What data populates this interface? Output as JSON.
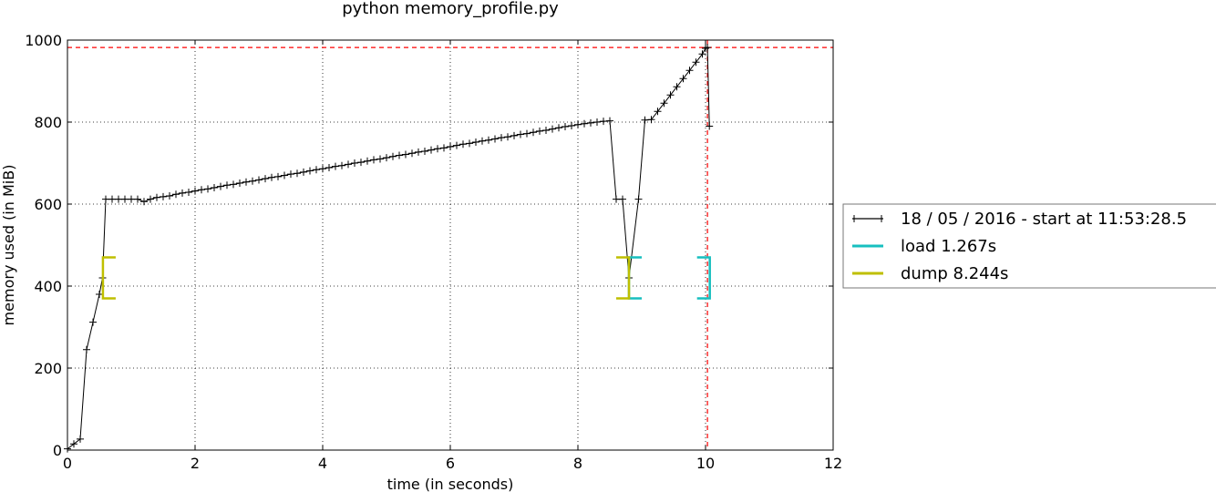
{
  "chart_data": {
    "type": "line",
    "title": "python memory_profile.py",
    "xlabel": "time (in seconds)",
    "ylabel": "memory used (in MiB)",
    "xlim": [
      0,
      12
    ],
    "ylim": [
      0,
      1000
    ],
    "xticks": [
      "0",
      "2",
      "4",
      "6",
      "8",
      "10",
      "12"
    ],
    "yticks": [
      "0",
      "200",
      "400",
      "600",
      "800",
      "1000"
    ],
    "grid": true,
    "legend_position": "right",
    "series": [
      {
        "name": "18 / 05 / 2016 - start at 11:53:28.5",
        "color": "#000000",
        "marker": "+",
        "points": [
          [
            0.0,
            3
          ],
          [
            0.1,
            15
          ],
          [
            0.2,
            27
          ],
          [
            0.3,
            245
          ],
          [
            0.4,
            312
          ],
          [
            0.5,
            380
          ],
          [
            0.55,
            420
          ],
          [
            0.6,
            612
          ],
          [
            0.7,
            612
          ],
          [
            0.8,
            612
          ],
          [
            0.9,
            612
          ],
          [
            1.0,
            612
          ],
          [
            1.1,
            612
          ],
          [
            1.2,
            606
          ],
          [
            1.3,
            612
          ],
          [
            1.4,
            616
          ],
          [
            1.5,
            618
          ],
          [
            1.6,
            620
          ],
          [
            1.7,
            624
          ],
          [
            1.8,
            627
          ],
          [
            1.9,
            629
          ],
          [
            2.0,
            632
          ],
          [
            2.1,
            635
          ],
          [
            2.2,
            637
          ],
          [
            2.3,
            640
          ],
          [
            2.4,
            643
          ],
          [
            2.5,
            646
          ],
          [
            2.6,
            648
          ],
          [
            2.7,
            651
          ],
          [
            2.8,
            654
          ],
          [
            2.9,
            656
          ],
          [
            3.0,
            659
          ],
          [
            3.1,
            662
          ],
          [
            3.2,
            665
          ],
          [
            3.3,
            667
          ],
          [
            3.4,
            670
          ],
          [
            3.5,
            673
          ],
          [
            3.6,
            675
          ],
          [
            3.7,
            678
          ],
          [
            3.8,
            681
          ],
          [
            3.9,
            684
          ],
          [
            4.0,
            686
          ],
          [
            4.1,
            689
          ],
          [
            4.2,
            692
          ],
          [
            4.3,
            694
          ],
          [
            4.4,
            697
          ],
          [
            4.5,
            700
          ],
          [
            4.6,
            702
          ],
          [
            4.7,
            705
          ],
          [
            4.8,
            708
          ],
          [
            4.9,
            710
          ],
          [
            5.0,
            713
          ],
          [
            5.1,
            716
          ],
          [
            5.2,
            719
          ],
          [
            5.3,
            721
          ],
          [
            5.4,
            724
          ],
          [
            5.5,
            727
          ],
          [
            5.6,
            729
          ],
          [
            5.7,
            732
          ],
          [
            5.8,
            735
          ],
          [
            5.9,
            737
          ],
          [
            6.0,
            740
          ],
          [
            6.1,
            743
          ],
          [
            6.2,
            746
          ],
          [
            6.3,
            748
          ],
          [
            6.4,
            751
          ],
          [
            6.5,
            754
          ],
          [
            6.6,
            756
          ],
          [
            6.7,
            759
          ],
          [
            6.8,
            762
          ],
          [
            6.9,
            764
          ],
          [
            7.0,
            767
          ],
          [
            7.1,
            770
          ],
          [
            7.2,
            772
          ],
          [
            7.3,
            775
          ],
          [
            7.4,
            778
          ],
          [
            7.5,
            780
          ],
          [
            7.6,
            783
          ],
          [
            7.7,
            786
          ],
          [
            7.8,
            789
          ],
          [
            7.9,
            791
          ],
          [
            8.0,
            794
          ],
          [
            8.1,
            796
          ],
          [
            8.2,
            798
          ],
          [
            8.3,
            800
          ],
          [
            8.4,
            802
          ],
          [
            8.5,
            803
          ],
          [
            8.6,
            612
          ],
          [
            8.7,
            612
          ],
          [
            8.8,
            420
          ],
          [
            8.95,
            612
          ],
          [
            9.05,
            805
          ],
          [
            9.15,
            806
          ],
          [
            9.25,
            826
          ],
          [
            9.35,
            846
          ],
          [
            9.45,
            866
          ],
          [
            9.55,
            886
          ],
          [
            9.65,
            906
          ],
          [
            9.75,
            926
          ],
          [
            9.85,
            946
          ],
          [
            9.95,
            966
          ],
          [
            10.0,
            980
          ],
          [
            10.03,
            982
          ],
          [
            10.06,
            790
          ]
        ]
      },
      {
        "name": "load 1.267s",
        "color": "#17bfbf",
        "type": "bracket-span",
        "spans": [
          {
            "x_start": 8.8,
            "x_end": 10.067,
            "y_low": 370,
            "y_high": 470
          }
        ]
      },
      {
        "name": "dump 8.244s",
        "color": "#bfbf00",
        "type": "bracket-span",
        "spans": [
          {
            "x_start": 0.556,
            "x_end": 8.8,
            "y_low": 370,
            "y_high": 470
          }
        ]
      }
    ],
    "reference_lines": {
      "color": "#ff0000",
      "peak_y": 982,
      "peak_x": 10.03
    }
  }
}
